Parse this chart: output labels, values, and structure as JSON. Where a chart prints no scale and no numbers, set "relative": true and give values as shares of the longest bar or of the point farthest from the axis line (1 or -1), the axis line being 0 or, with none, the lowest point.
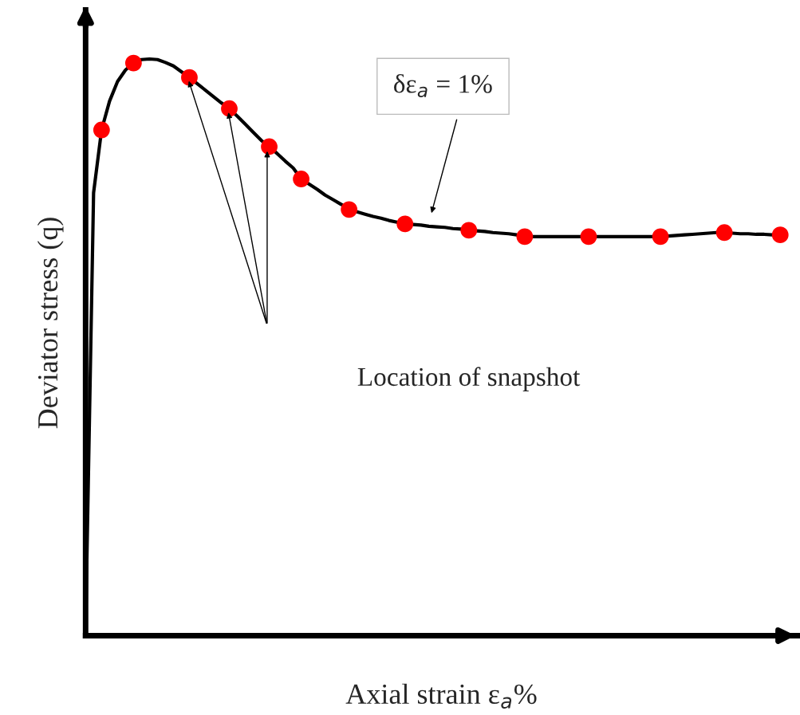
{
  "chart_data": {
    "type": "line",
    "relative": true,
    "xlabel": "Axial strain ε$_{a}$%",
    "ylabel": "Deviator stress (q)",
    "categories": [
      null,
      null,
      null,
      null,
      null,
      null,
      null,
      null,
      null,
      null,
      null,
      null,
      null,
      null,
      null,
      null,
      null,
      null,
      null,
      null,
      null,
      null,
      null,
      null,
      null,
      null,
      null,
      null,
      null,
      null,
      null,
      null,
      null,
      null,
      null,
      null,
      null,
      null,
      null,
      null,
      null,
      null,
      null,
      null,
      null,
      null,
      null,
      null,
      null,
      null,
      null,
      null,
      null,
      null,
      null,
      null,
      null,
      null,
      null,
      null,
      null,
      null,
      null,
      null,
      null,
      null,
      null,
      null,
      null,
      null,
      null,
      null,
      null,
      null,
      null,
      null,
      null,
      null,
      null,
      null,
      null,
      null,
      null,
      null,
      null,
      null,
      null,
      null
    ],
    "series": [
      {
        "color": "#000000",
        "line_style": "solid",
        "values": [
          0.01,
          0.768,
          0.877,
          0.927,
          0.961,
          0.981,
          0.993,
          0.999,
          1.0,
          0.999,
          0.994,
          0.988,
          0.978,
          0.968,
          0.957,
          0.946,
          0.935,
          0.924,
          0.914,
          0.901,
          0.887,
          0.873,
          0.859,
          0.848,
          0.836,
          0.823,
          0.811,
          0.792,
          0.783,
          0.774,
          0.764,
          0.756,
          0.748,
          0.739,
          0.735,
          0.731,
          0.727,
          0.724,
          0.72,
          0.717,
          0.714,
          0.713,
          0.712,
          0.71,
          0.709,
          0.708,
          0.706,
          0.705,
          0.703,
          0.702,
          0.701,
          0.699,
          0.698,
          0.697,
          0.695,
          0.692,
          0.692,
          0.692,
          0.692,
          0.692,
          0.692,
          0.692,
          0.692,
          0.692,
          0.692,
          0.692,
          0.692,
          0.692,
          0.692,
          0.692,
          0.692,
          0.692,
          0.692,
          0.693,
          0.694,
          0.695,
          0.696,
          0.697,
          0.698,
          0.699,
          0.699,
          0.698,
          0.697,
          0.697,
          0.696,
          0.696,
          0.695,
          0.695
        ],
        "colors": [
          null,
          null,
          "#ff0000",
          null,
          null,
          null,
          "#ff0000",
          null,
          null,
          null,
          null,
          null,
          null,
          "#ff0000",
          null,
          null,
          null,
          null,
          "#ff0000",
          null,
          null,
          null,
          null,
          "#ff0000",
          null,
          null,
          null,
          "#ff0000",
          null,
          null,
          null,
          null,
          null,
          "#ff0000",
          null,
          null,
          null,
          null,
          null,
          null,
          "#ff0000",
          null,
          null,
          null,
          null,
          null,
          null,
          null,
          "#ff0000",
          null,
          null,
          null,
          null,
          null,
          null,
          "#ff0000",
          null,
          null,
          null,
          null,
          null,
          null,
          null,
          "#ff0000",
          null,
          null,
          null,
          null,
          null,
          null,
          null,
          null,
          "#ff0000",
          null,
          null,
          null,
          null,
          null,
          null,
          null,
          "#ff0000",
          null,
          null,
          null,
          null,
          null,
          null,
          "#ff0000"
        ]
      }
    ],
    "annotations": [
      "δε$_{a}$ = 1%",
      "Location of snapshot"
    ]
  }
}
